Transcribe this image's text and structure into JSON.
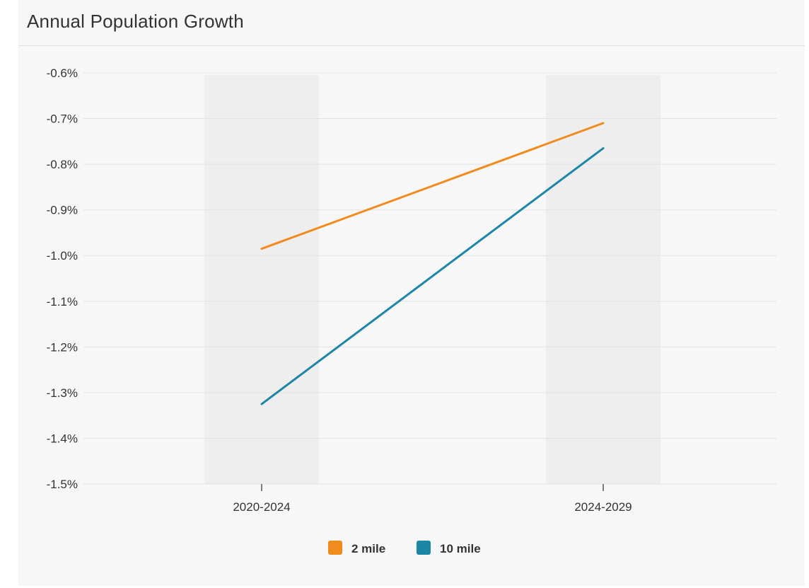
{
  "panel": {
    "title": "Annual Population Growth"
  },
  "colors": {
    "series_2_mile": "#f28b1e",
    "series_10_mile": "#1c86a6",
    "band": "#eeeeee",
    "grid": "#e3e3e3",
    "axis_text": "#333333",
    "panel_bg": "#f7f7f7"
  },
  "chart_data": {
    "type": "line",
    "title": "Annual Population Growth",
    "xlabel": "",
    "ylabel": "",
    "categories": [
      "2020-2024",
      "2024-2029"
    ],
    "series": [
      {
        "name": "2 mile",
        "color": "#f28b1e",
        "values": [
          -0.985,
          -0.71
        ]
      },
      {
        "name": "10 mile",
        "color": "#1c86a6",
        "values": [
          -1.325,
          -0.765
        ]
      }
    ],
    "ylim": [
      -1.5,
      -0.6
    ],
    "yticks": [
      -0.6,
      -0.7,
      -0.8,
      -0.9,
      -1.0,
      -1.1,
      -1.2,
      -1.3,
      -1.4,
      -1.5
    ],
    "ytick_labels": [
      "-0.6%",
      "-0.7%",
      "-0.8%",
      "-0.9%",
      "-1.0%",
      "-1.1%",
      "-1.2%",
      "-1.3%",
      "-1.4%",
      "-1.5%"
    ],
    "grid": true,
    "category_bands": true,
    "legend_position": "bottom-center"
  }
}
